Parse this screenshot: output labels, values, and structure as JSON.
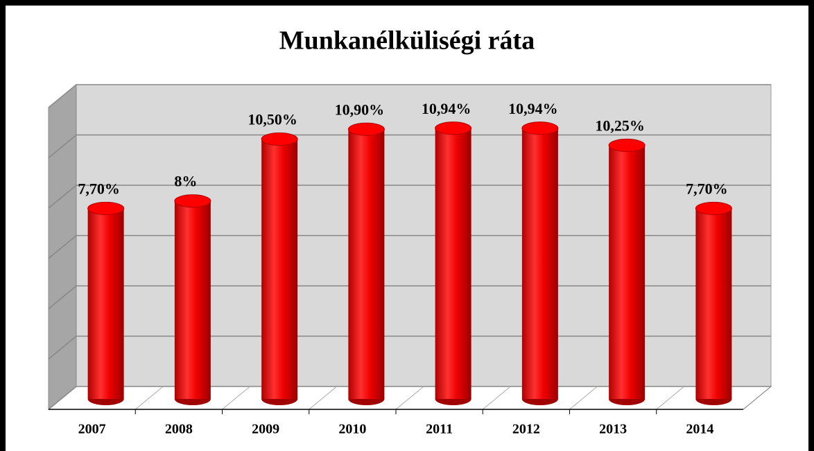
{
  "chart_data": {
    "type": "bar",
    "title": "Munkanélküliségi ráta",
    "categories": [
      "2007",
      "2008",
      "2009",
      "2010",
      "2011",
      "2012",
      "2013",
      "2014"
    ],
    "values": [
      7.7,
      8,
      10.5,
      10.9,
      10.94,
      10.94,
      10.25,
      7.7
    ],
    "value_labels": [
      "7,70%",
      "8%",
      "10,50%",
      "10,90%",
      "10,94%",
      "10,94%",
      "10,25%",
      "7,70%"
    ],
    "color": "#ff0000",
    "ylim": [
      0,
      12
    ],
    "yticks": [
      0,
      2,
      4,
      6,
      8,
      10,
      12
    ],
    "grid": true
  }
}
